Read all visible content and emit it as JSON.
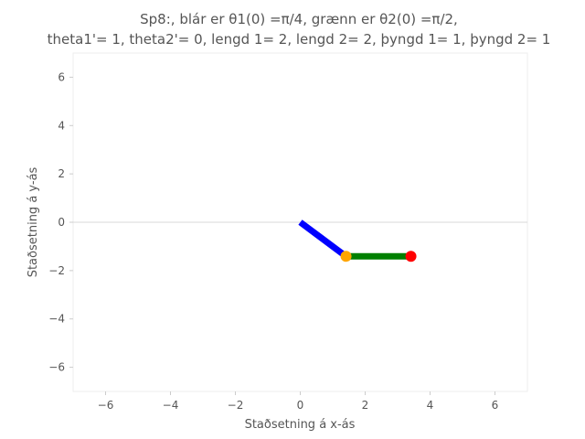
{
  "chart_data": {
    "type": "line",
    "title_line1": "Sp8:, blár er θ1(0) =π/4, grænn er θ2(0) =π/2,",
    "title_line2": "theta1'= 1, theta2'= 0, lengd 1= 2, lengd 2= 2, þyngd 1= 1, þyngd 2= 1",
    "xlabel": "Staðsetning á x-ás",
    "ylabel": "Staðsetning á y-ás",
    "xlim": [
      -7,
      7
    ],
    "ylim": [
      -7,
      7
    ],
    "xticks": [
      -6,
      -4,
      -2,
      0,
      2,
      4,
      6
    ],
    "yticks": [
      -6,
      -4,
      -2,
      0,
      2,
      4,
      6
    ],
    "xtick_labels": [
      "−6",
      "−4",
      "−2",
      "0",
      "2",
      "4",
      "6"
    ],
    "ytick_labels": [
      "−6",
      "−4",
      "−2",
      "0",
      "2",
      "4",
      "6"
    ],
    "grid": false,
    "series": [
      {
        "color": "#0000ff",
        "x": [
          0,
          1.41
        ],
        "y": [
          0,
          -1.41
        ]
      },
      {
        "color": "#008000",
        "x": [
          1.41,
          3.41
        ],
        "y": [
          -1.41,
          -1.41
        ]
      }
    ],
    "masses": [
      {
        "x": 1.41,
        "y": -1.41,
        "color": "#ffa500"
      },
      {
        "x": 3.41,
        "y": -1.41,
        "color": "#ff0000"
      }
    ],
    "zero_line_color": "#d8d8d8"
  }
}
